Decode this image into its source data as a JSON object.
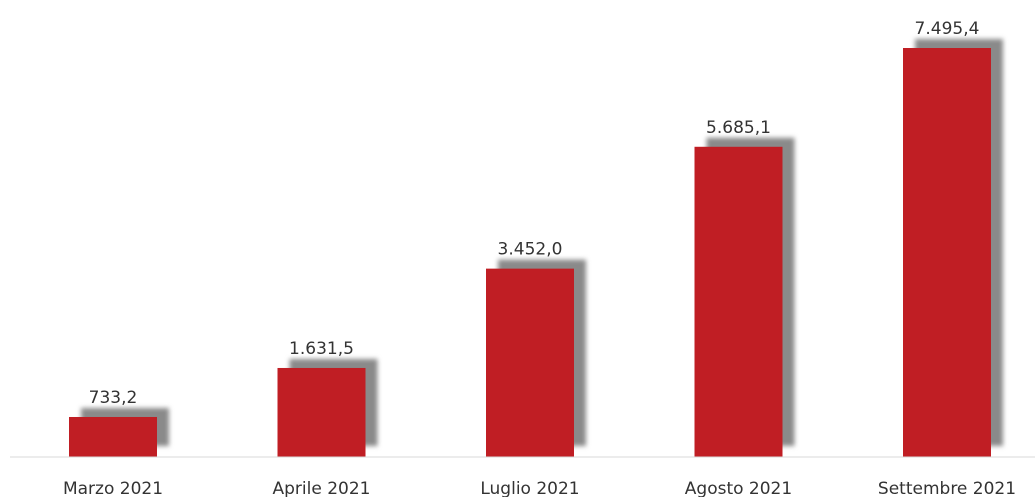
{
  "chart_data": {
    "type": "bar",
    "categories": [
      "Marzo 2021",
      "Aprile 2021",
      "Luglio 2021",
      "Agosto 2021",
      "Settembre 2021"
    ],
    "values": [
      733.2,
      1631.5,
      3452.0,
      5685.1,
      7495.4
    ],
    "value_labels": [
      "733,2",
      "1.631,5",
      "3.452,0",
      "5.685,1",
      "7.495,4"
    ],
    "title": "",
    "xlabel": "",
    "ylabel": "",
    "ylim": [
      0,
      7495.4
    ],
    "grid": false,
    "legend": "none",
    "colors": {
      "bar": "#c01e24",
      "shadow": "#8a8a8a",
      "axis": "#d9d9d9"
    }
  }
}
